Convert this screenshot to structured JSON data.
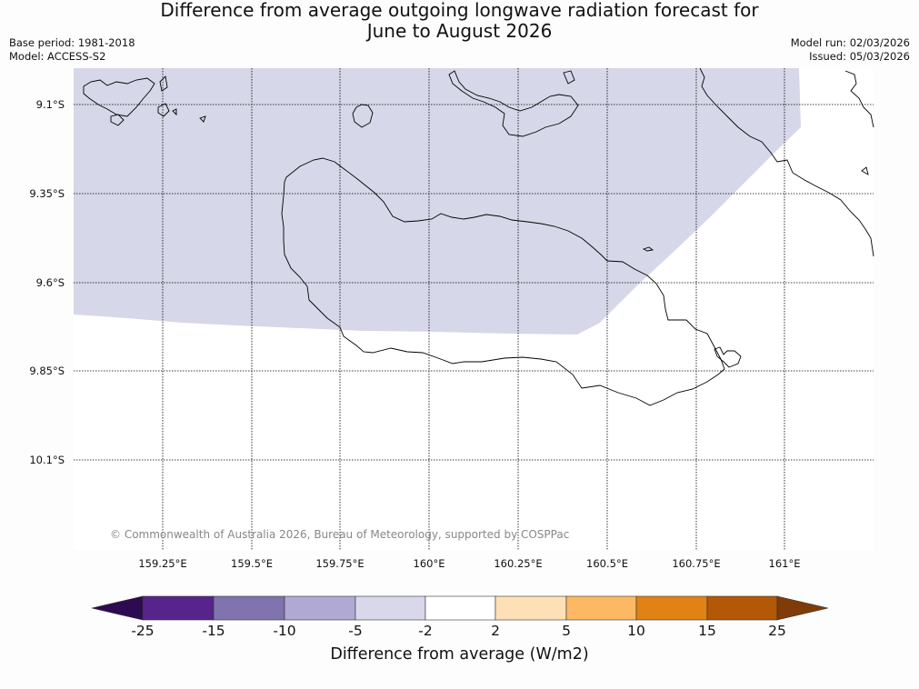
{
  "title": {
    "line1": "Difference from average outgoing longwave radiation forecast for",
    "line2": "June to August 2026"
  },
  "meta": {
    "base_period": "Base period: 1981-2018",
    "model": "Model: ACCESS-S2",
    "model_run": "Model run: 02/03/2026",
    "issued": "Issued: 05/03/2026"
  },
  "map": {
    "latitude_labels": [
      "9.1°S",
      "9.35°S",
      "9.6°S",
      "9.85°S",
      "10.1°S"
    ],
    "longitude_labels": [
      "159.25°E",
      "159.5°E",
      "159.75°E",
      "160°E",
      "160.25°E",
      "160.5°E",
      "160.75°E",
      "161°E"
    ],
    "shaded_category": "-5 to -2",
    "shaded_color": "#d6d7e8",
    "copyright": "© Commonwealth of Australia 2026, Bureau of Meteorology, supported by COSPPac"
  },
  "colorbar": {
    "ticks": [
      "-25",
      "-15",
      "-10",
      "-5",
      "-2",
      "2",
      "5",
      "10",
      "15",
      "25"
    ],
    "colors": [
      "#2d0a52",
      "#56248a",
      "#8173ad",
      "#b0a9d3",
      "#d8d8ea",
      "#ffffff",
      "#fee0b6",
      "#fdb863",
      "#e08214",
      "#b35806",
      "#7f3b08"
    ],
    "label": "Difference from average (W/m2)"
  }
}
